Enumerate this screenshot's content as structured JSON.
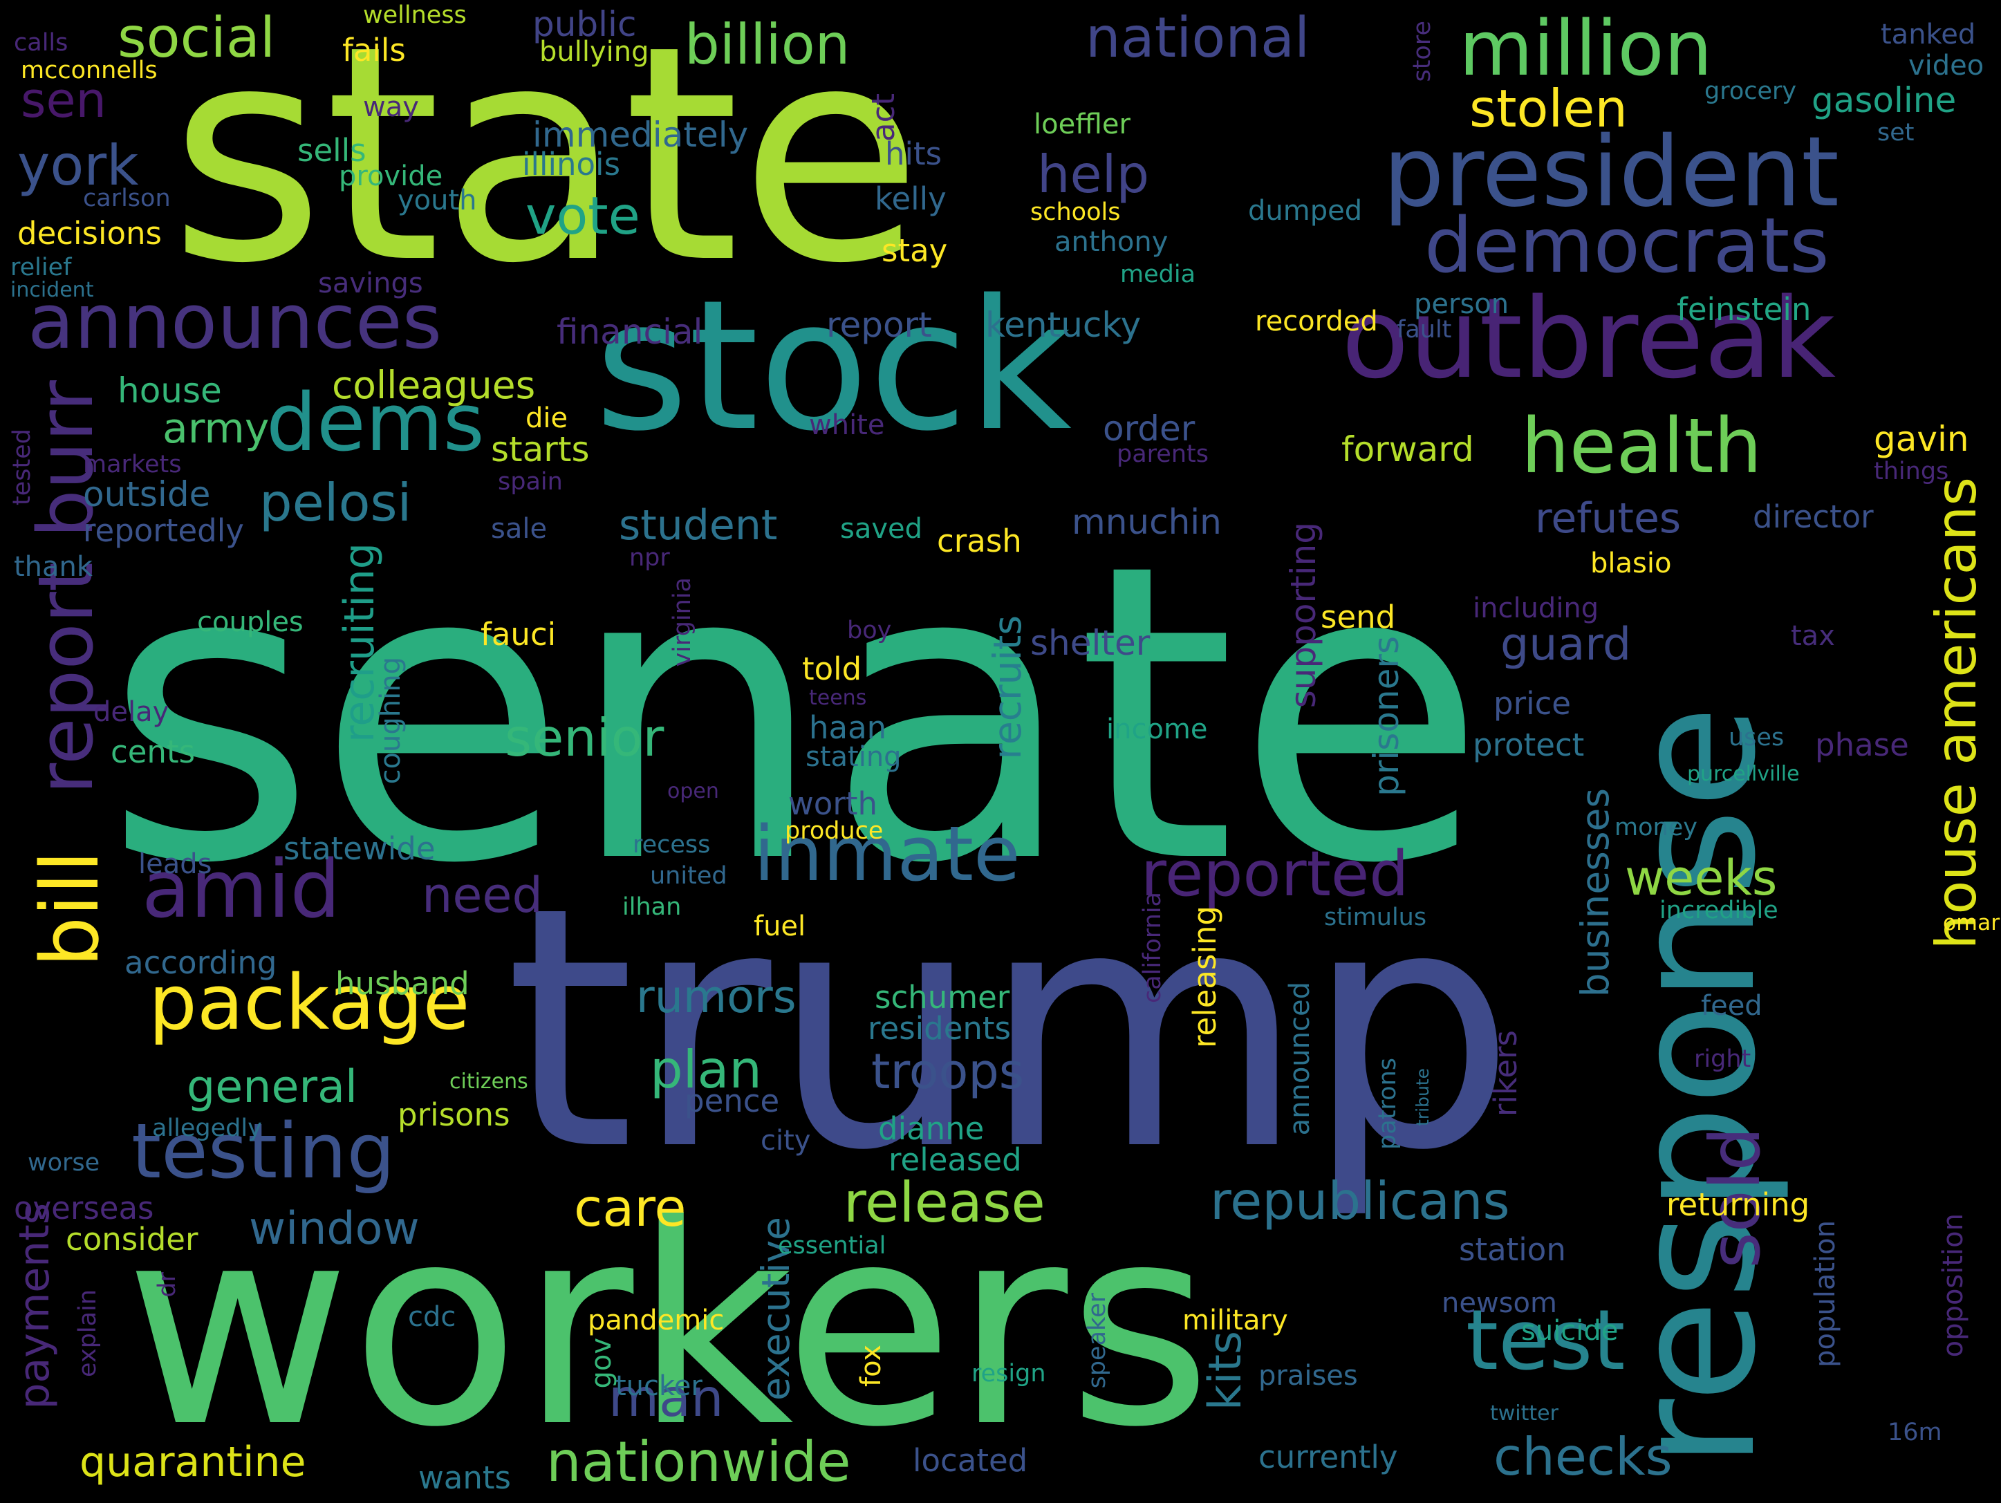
{
  "palette": {
    "c1": "#440154",
    "c2": "#482878",
    "c3": "#3e4989",
    "c4": "#31688e",
    "c5": "#26828e",
    "c6": "#1f9e89",
    "c7": "#35b779",
    "c8": "#6ece58",
    "c9": "#b5de2b",
    "c10": "#fde725"
  },
  "words": [
    {
      "text": "state",
      "color": "#a6db34"
    },
    {
      "text": "senate",
      "color": "#2aae7e"
    },
    {
      "text": "trump",
      "color": "#3e4a8a"
    },
    {
      "text": "workers",
      "color": "#4cc26c"
    },
    {
      "text": "stock",
      "color": "#21918c"
    },
    {
      "text": "response",
      "color": "#26848e"
    },
    {
      "text": "outbreak",
      "color": "#482475"
    },
    {
      "text": "president",
      "color": "#3b528b"
    },
    {
      "text": "democrats",
      "color": "#3f4788"
    },
    {
      "text": "million",
      "color": "#5ec962"
    },
    {
      "text": "health",
      "color": "#6ece58"
    },
    {
      "text": "announces",
      "color": "#46337e"
    },
    {
      "text": "inmate",
      "color": "#31688e"
    },
    {
      "text": "testing",
      "color": "#3b528b"
    },
    {
      "text": "package",
      "color": "#fde725"
    },
    {
      "text": "bill",
      "color": "#fde725"
    },
    {
      "text": "amid",
      "color": "#482878"
    },
    {
      "text": "dems",
      "color": "#21918c"
    },
    {
      "text": "test",
      "color": "#26848e"
    },
    {
      "text": "reported",
      "color": "#482475"
    },
    {
      "text": "sold",
      "color": "#472d7b"
    },
    {
      "text": "house americans",
      "color": "#dde318"
    },
    {
      "text": "report burr",
      "color": "#472d7b"
    },
    {
      "text": "release",
      "color": "#8fd744"
    },
    {
      "text": "nationwide",
      "color": "#6ece58"
    },
    {
      "text": "checks",
      "color": "#2c728e"
    },
    {
      "text": "republicans",
      "color": "#2c728e"
    },
    {
      "text": "national",
      "color": "#404688"
    },
    {
      "text": "social",
      "color": "#8fd744"
    },
    {
      "text": "billion",
      "color": "#6ece58"
    },
    {
      "text": "stolen",
      "color": "#fde725"
    },
    {
      "text": "help",
      "color": "#414487"
    },
    {
      "text": "vote",
      "color": "#20a386"
    },
    {
      "text": "pelosi",
      "color": "#2a788e"
    },
    {
      "text": "army",
      "color": "#4ac16d"
    },
    {
      "text": "york",
      "color": "#3b528b"
    },
    {
      "text": "sen",
      "color": "#48186a"
    },
    {
      "text": "senior",
      "color": "#35b779"
    },
    {
      "text": "plan",
      "color": "#35b779"
    },
    {
      "text": "care",
      "color": "#fde725"
    },
    {
      "text": "weeks",
      "color": "#8fd744"
    },
    {
      "text": "man",
      "color": "#3e4989"
    },
    {
      "text": "quarantine",
      "color": "#dde318"
    },
    {
      "text": "troops",
      "color": "#3b528b"
    },
    {
      "text": "guard",
      "color": "#3e4a89"
    },
    {
      "text": "general",
      "color": "#35b779"
    },
    {
      "text": "need",
      "color": "#472d7b"
    },
    {
      "text": "rumors",
      "color": "#2a788e"
    },
    {
      "text": "window",
      "color": "#31688e"
    },
    {
      "text": "student",
      "color": "#2c728e"
    },
    {
      "text": "refutes",
      "color": "#3e4a89"
    },
    {
      "text": "recruits",
      "color": "#277f8e"
    },
    {
      "text": "recruiting",
      "color": "#1f9e89"
    },
    {
      "text": "supporting",
      "color": "#482878"
    },
    {
      "text": "kits",
      "color": "#2a788e"
    },
    {
      "text": "payments",
      "color": "#482878"
    },
    {
      "text": "businesses",
      "color": "#2d708e"
    },
    {
      "text": "prisoners",
      "color": "#2a788e"
    },
    {
      "text": "executive",
      "color": "#2c728e"
    },
    {
      "text": "shelter",
      "color": "#3e4a89"
    },
    {
      "text": "mnuchin",
      "color": "#3b528b"
    },
    {
      "text": "crash",
      "color": "#fde725"
    },
    {
      "text": "order",
      "color": "#3b528b"
    },
    {
      "text": "starts",
      "color": "#b5de2b"
    },
    {
      "text": "colleagues",
      "color": "#b5de2b"
    },
    {
      "text": "house",
      "color": "#35b779"
    },
    {
      "text": "outside",
      "color": "#31688e"
    },
    {
      "text": "reportedly",
      "color": "#3b528b"
    },
    {
      "text": "forward",
      "color": "#b5de2b"
    },
    {
      "text": "feinstein",
      "color": "#22a785"
    },
    {
      "text": "gavin",
      "color": "#fde725"
    },
    {
      "text": "director",
      "color": "#3b528b"
    },
    {
      "text": "gasoline",
      "color": "#20a386"
    },
    {
      "text": "tanked",
      "color": "#3b528b"
    },
    {
      "text": "video",
      "color": "#2c728e"
    },
    {
      "text": "grocery",
      "color": "#2a788e"
    },
    {
      "text": "set",
      "color": "#31688e"
    },
    {
      "text": "public",
      "color": "#414487"
    },
    {
      "text": "fails",
      "color": "#fde725"
    },
    {
      "text": "bullying",
      "color": "#b5de2b"
    },
    {
      "text": "wellness",
      "color": "#b5de2b"
    },
    {
      "text": "calls",
      "color": "#482878"
    },
    {
      "text": "mcconnells",
      "color": "#fde725"
    },
    {
      "text": "immediately",
      "color": "#31688e"
    },
    {
      "text": "illinois",
      "color": "#2a788e"
    },
    {
      "text": "hits",
      "color": "#3b528b"
    },
    {
      "text": "kelly",
      "color": "#31688e"
    },
    {
      "text": "stay",
      "color": "#fde725"
    },
    {
      "text": "sells",
      "color": "#35b779"
    },
    {
      "text": "provide",
      "color": "#35b779"
    },
    {
      "text": "youth",
      "color": "#2a788e"
    },
    {
      "text": "carlson",
      "color": "#3b528b"
    },
    {
      "text": "decisions",
      "color": "#fde725"
    },
    {
      "text": "relief",
      "color": "#2a788e"
    },
    {
      "text": "incident",
      "color": "#2c728e"
    },
    {
      "text": "savings",
      "color": "#472d7b"
    },
    {
      "text": "financial",
      "color": "#472d7b"
    },
    {
      "text": "report",
      "color": "#3b528b"
    },
    {
      "text": "kentucky",
      "color": "#2c728e"
    },
    {
      "text": "loeffler",
      "color": "#6ece58"
    },
    {
      "text": "schools",
      "color": "#fde725"
    },
    {
      "text": "anthony",
      "color": "#2c728e"
    },
    {
      "text": "media",
      "color": "#20a386"
    },
    {
      "text": "dumped",
      "color": "#2a788e"
    },
    {
      "text": "recorded",
      "color": "#fde725"
    },
    {
      "text": "person",
      "color": "#2c728e"
    },
    {
      "text": "fault",
      "color": "#3b528b"
    },
    {
      "text": "store",
      "color": "#472d7b"
    },
    {
      "text": "act",
      "color": "#482878"
    },
    {
      "text": "way",
      "color": "#482878"
    },
    {
      "text": "die",
      "color": "#fde725"
    },
    {
      "text": "white",
      "color": "#482878"
    },
    {
      "text": "markets",
      "color": "#482878"
    },
    {
      "text": "spain",
      "color": "#482878"
    },
    {
      "text": "tested",
      "color": "#482878"
    },
    {
      "text": "sale",
      "color": "#3b528b"
    },
    {
      "text": "thank",
      "color": "#31688e"
    },
    {
      "text": "parents",
      "color": "#482878"
    },
    {
      "text": "things",
      "color": "#482878"
    },
    {
      "text": "npr",
      "color": "#482878"
    },
    {
      "text": "saved",
      "color": "#20a386"
    },
    {
      "text": "blasio",
      "color": "#fde725"
    },
    {
      "text": "including",
      "color": "#482878"
    },
    {
      "text": "virginia",
      "color": "#482878"
    },
    {
      "text": "couples",
      "color": "#35b779"
    },
    {
      "text": "fauci",
      "color": "#fde725"
    },
    {
      "text": "boy",
      "color": "#482878"
    },
    {
      "text": "send",
      "color": "#fde725"
    },
    {
      "text": "tax",
      "color": "#472d7b"
    },
    {
      "text": "delay",
      "color": "#482878"
    },
    {
      "text": "coughing",
      "color": "#2a788e"
    },
    {
      "text": "told",
      "color": "#fde725"
    },
    {
      "text": "teens",
      "color": "#482878"
    },
    {
      "text": "haan",
      "color": "#2c728e"
    },
    {
      "text": "stating",
      "color": "#2c728e"
    },
    {
      "text": "income",
      "color": "#20a386"
    },
    {
      "text": "price",
      "color": "#3b528b"
    },
    {
      "text": "protect",
      "color": "#2c728e"
    },
    {
      "text": "phase",
      "color": "#482878"
    },
    {
      "text": "uses",
      "color": "#2c728e"
    },
    {
      "text": "purcellville",
      "color": "#20a386"
    },
    {
      "text": "cents",
      "color": "#35b779"
    },
    {
      "text": "open",
      "color": "#482878"
    },
    {
      "text": "worth",
      "color": "#3b528b"
    },
    {
      "text": "produce",
      "color": "#fde725"
    },
    {
      "text": "money",
      "color": "#2a788e"
    },
    {
      "text": "leads",
      "color": "#3b528b"
    },
    {
      "text": "statewide",
      "color": "#2c728e"
    },
    {
      "text": "recess",
      "color": "#2c728e"
    },
    {
      "text": "united",
      "color": "#31688e"
    },
    {
      "text": "ilhan",
      "color": "#35b779"
    },
    {
      "text": "fuel",
      "color": "#fde725"
    },
    {
      "text": "california",
      "color": "#482878"
    },
    {
      "text": "releasing",
      "color": "#fde725"
    },
    {
      "text": "stimulus",
      "color": "#2c728e"
    },
    {
      "text": "incredible",
      "color": "#20a386"
    },
    {
      "text": "omar",
      "color": "#fde725"
    },
    {
      "text": "according",
      "color": "#31688e"
    },
    {
      "text": "husband",
      "color": "#6ece58"
    },
    {
      "text": "schumer",
      "color": "#35b779"
    },
    {
      "text": "residents",
      "color": "#2a788e"
    },
    {
      "text": "announced",
      "color": "#2c728e"
    },
    {
      "text": "feed",
      "color": "#31688e"
    },
    {
      "text": "rikers",
      "color": "#472d7b"
    },
    {
      "text": "right",
      "color": "#482878"
    },
    {
      "text": "tribute",
      "color": "#2c728e"
    },
    {
      "text": "patrons",
      "color": "#2c728e"
    },
    {
      "text": "citizens",
      "color": "#6ece58"
    },
    {
      "text": "pence",
      "color": "#3b528b"
    },
    {
      "text": "prisons",
      "color": "#b5de2b"
    },
    {
      "text": "dianne",
      "color": "#20a386"
    },
    {
      "text": "city",
      "color": "#3b528b"
    },
    {
      "text": "released",
      "color": "#20a386"
    },
    {
      "text": "allegedly",
      "color": "#2c728e"
    },
    {
      "text": "worse",
      "color": "#31688e"
    },
    {
      "text": "overseas",
      "color": "#482878"
    },
    {
      "text": "consider",
      "color": "#b5de2b"
    },
    {
      "text": "essential",
      "color": "#20a386"
    },
    {
      "text": "station",
      "color": "#3b528b"
    },
    {
      "text": "returning",
      "color": "#fde725"
    },
    {
      "text": "population",
      "color": "#3b528b"
    },
    {
      "text": "opposition",
      "color": "#482878"
    },
    {
      "text": "explain",
      "color": "#482878"
    },
    {
      "text": "dr",
      "color": "#482878"
    },
    {
      "text": "cdc",
      "color": "#2c728e"
    },
    {
      "text": "pandemic",
      "color": "#fde725"
    },
    {
      "text": "gov",
      "color": "#35b779"
    },
    {
      "text": "tucker",
      "color": "#2c728e"
    },
    {
      "text": "military",
      "color": "#fde725"
    },
    {
      "text": "newsom",
      "color": "#3b528b"
    },
    {
      "text": "suicide",
      "color": "#20a386"
    },
    {
      "text": "fox",
      "color": "#fde725"
    },
    {
      "text": "resign",
      "color": "#20a386"
    },
    {
      "text": "praises",
      "color": "#31688e"
    },
    {
      "text": "speaker",
      "color": "#31688e"
    },
    {
      "text": "twitter",
      "color": "#2c728e"
    },
    {
      "text": "16m",
      "color": "#3b528b"
    },
    {
      "text": "wants",
      "color": "#2a788e"
    },
    {
      "text": "located",
      "color": "#3b528b"
    },
    {
      "text": "currently",
      "color": "#2c728e"
    }
  ]
}
